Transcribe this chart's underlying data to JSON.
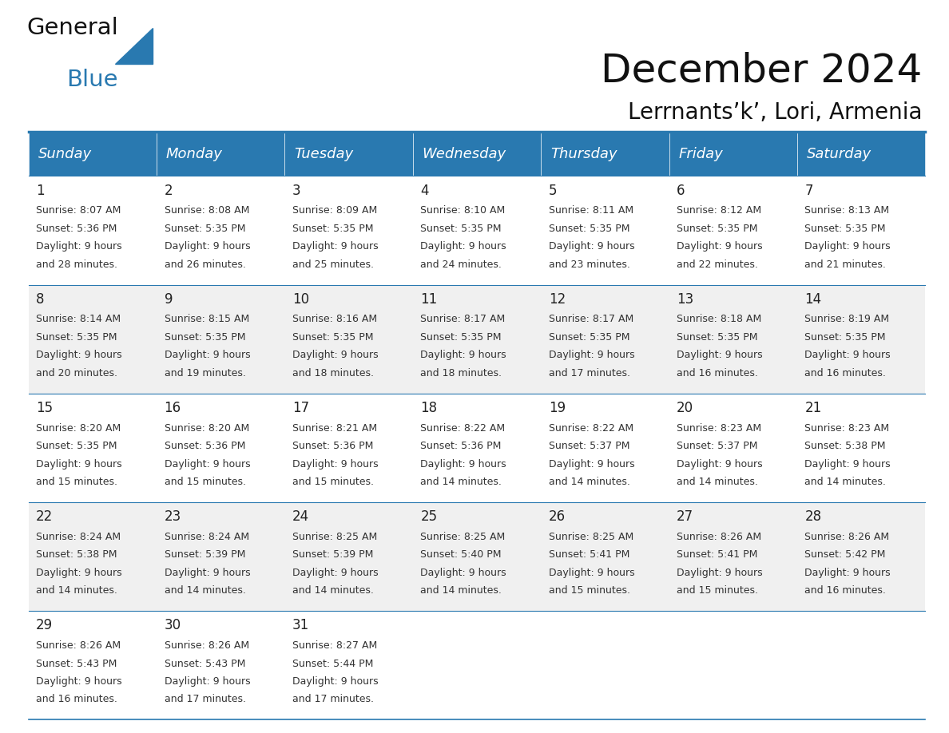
{
  "title": "December 2024",
  "subtitle": "Lerrnants’k’, Lori, Armenia",
  "header_bg_color": "#2979B0",
  "header_text_color": "#FFFFFF",
  "cell_bg_even": "#FFFFFF",
  "cell_bg_odd": "#F0F0F0",
  "border_color": "#2979B0",
  "text_color": "#333333",
  "day_num_color": "#222222",
  "logo_general_color": "#111111",
  "logo_blue_color": "#2979B0",
  "figure_bg": "#FFFFFF",
  "days_of_week": [
    "Sunday",
    "Monday",
    "Tuesday",
    "Wednesday",
    "Thursday",
    "Friday",
    "Saturday"
  ],
  "title_fontsize": 36,
  "subtitle_fontsize": 20,
  "header_fontsize": 13,
  "cell_fontsize": 9,
  "day_num_fontsize": 12,
  "weeks": [
    [
      {
        "day": 1,
        "sunrise": "8:07 AM",
        "sunset": "5:36 PM",
        "daylight_hours": 9,
        "daylight_minutes": 28
      },
      {
        "day": 2,
        "sunrise": "8:08 AM",
        "sunset": "5:35 PM",
        "daylight_hours": 9,
        "daylight_minutes": 26
      },
      {
        "day": 3,
        "sunrise": "8:09 AM",
        "sunset": "5:35 PM",
        "daylight_hours": 9,
        "daylight_minutes": 25
      },
      {
        "day": 4,
        "sunrise": "8:10 AM",
        "sunset": "5:35 PM",
        "daylight_hours": 9,
        "daylight_minutes": 24
      },
      {
        "day": 5,
        "sunrise": "8:11 AM",
        "sunset": "5:35 PM",
        "daylight_hours": 9,
        "daylight_minutes": 23
      },
      {
        "day": 6,
        "sunrise": "8:12 AM",
        "sunset": "5:35 PM",
        "daylight_hours": 9,
        "daylight_minutes": 22
      },
      {
        "day": 7,
        "sunrise": "8:13 AM",
        "sunset": "5:35 PM",
        "daylight_hours": 9,
        "daylight_minutes": 21
      }
    ],
    [
      {
        "day": 8,
        "sunrise": "8:14 AM",
        "sunset": "5:35 PM",
        "daylight_hours": 9,
        "daylight_minutes": 20
      },
      {
        "day": 9,
        "sunrise": "8:15 AM",
        "sunset": "5:35 PM",
        "daylight_hours": 9,
        "daylight_minutes": 19
      },
      {
        "day": 10,
        "sunrise": "8:16 AM",
        "sunset": "5:35 PM",
        "daylight_hours": 9,
        "daylight_minutes": 18
      },
      {
        "day": 11,
        "sunrise": "8:17 AM",
        "sunset": "5:35 PM",
        "daylight_hours": 9,
        "daylight_minutes": 18
      },
      {
        "day": 12,
        "sunrise": "8:17 AM",
        "sunset": "5:35 PM",
        "daylight_hours": 9,
        "daylight_minutes": 17
      },
      {
        "day": 13,
        "sunrise": "8:18 AM",
        "sunset": "5:35 PM",
        "daylight_hours": 9,
        "daylight_minutes": 16
      },
      {
        "day": 14,
        "sunrise": "8:19 AM",
        "sunset": "5:35 PM",
        "daylight_hours": 9,
        "daylight_minutes": 16
      }
    ],
    [
      {
        "day": 15,
        "sunrise": "8:20 AM",
        "sunset": "5:35 PM",
        "daylight_hours": 9,
        "daylight_minutes": 15
      },
      {
        "day": 16,
        "sunrise": "8:20 AM",
        "sunset": "5:36 PM",
        "daylight_hours": 9,
        "daylight_minutes": 15
      },
      {
        "day": 17,
        "sunrise": "8:21 AM",
        "sunset": "5:36 PM",
        "daylight_hours": 9,
        "daylight_minutes": 15
      },
      {
        "day": 18,
        "sunrise": "8:22 AM",
        "sunset": "5:36 PM",
        "daylight_hours": 9,
        "daylight_minutes": 14
      },
      {
        "day": 19,
        "sunrise": "8:22 AM",
        "sunset": "5:37 PM",
        "daylight_hours": 9,
        "daylight_minutes": 14
      },
      {
        "day": 20,
        "sunrise": "8:23 AM",
        "sunset": "5:37 PM",
        "daylight_hours": 9,
        "daylight_minutes": 14
      },
      {
        "day": 21,
        "sunrise": "8:23 AM",
        "sunset": "5:38 PM",
        "daylight_hours": 9,
        "daylight_minutes": 14
      }
    ],
    [
      {
        "day": 22,
        "sunrise": "8:24 AM",
        "sunset": "5:38 PM",
        "daylight_hours": 9,
        "daylight_minutes": 14
      },
      {
        "day": 23,
        "sunrise": "8:24 AM",
        "sunset": "5:39 PM",
        "daylight_hours": 9,
        "daylight_minutes": 14
      },
      {
        "day": 24,
        "sunrise": "8:25 AM",
        "sunset": "5:39 PM",
        "daylight_hours": 9,
        "daylight_minutes": 14
      },
      {
        "day": 25,
        "sunrise": "8:25 AM",
        "sunset": "5:40 PM",
        "daylight_hours": 9,
        "daylight_minutes": 14
      },
      {
        "day": 26,
        "sunrise": "8:25 AM",
        "sunset": "5:41 PM",
        "daylight_hours": 9,
        "daylight_minutes": 15
      },
      {
        "day": 27,
        "sunrise": "8:26 AM",
        "sunset": "5:41 PM",
        "daylight_hours": 9,
        "daylight_minutes": 15
      },
      {
        "day": 28,
        "sunrise": "8:26 AM",
        "sunset": "5:42 PM",
        "daylight_hours": 9,
        "daylight_minutes": 16
      }
    ],
    [
      {
        "day": 29,
        "sunrise": "8:26 AM",
        "sunset": "5:43 PM",
        "daylight_hours": 9,
        "daylight_minutes": 16
      },
      {
        "day": 30,
        "sunrise": "8:26 AM",
        "sunset": "5:43 PM",
        "daylight_hours": 9,
        "daylight_minutes": 17
      },
      {
        "day": 31,
        "sunrise": "8:27 AM",
        "sunset": "5:44 PM",
        "daylight_hours": 9,
        "daylight_minutes": 17
      },
      null,
      null,
      null,
      null
    ]
  ]
}
